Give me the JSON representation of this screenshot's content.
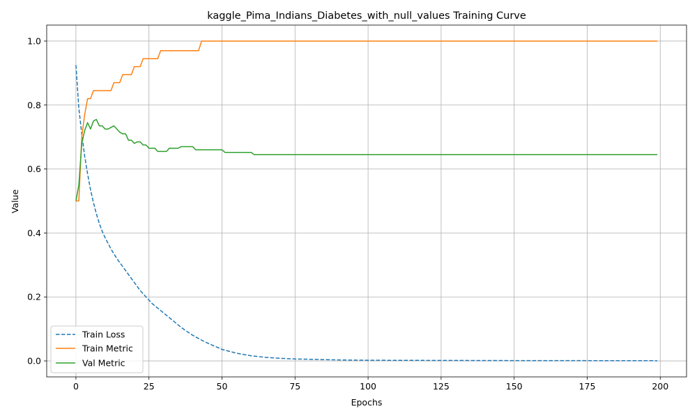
{
  "chart_data": {
    "type": "line",
    "title": "kaggle_Pima_Indians_Diabetes_with_null_values Training Curve",
    "xlabel": "Epochs",
    "ylabel": "Value",
    "xlim": [
      -10,
      209
    ],
    "ylim": [
      -0.05,
      1.05
    ],
    "x_ticks": [
      0,
      25,
      50,
      75,
      100,
      125,
      150,
      175,
      200
    ],
    "x_tick_labels": [
      "0",
      "25",
      "50",
      "75",
      "100",
      "125",
      "150",
      "175",
      "200"
    ],
    "y_ticks": [
      0.0,
      0.2,
      0.4,
      0.6,
      0.8,
      1.0
    ],
    "y_tick_labels": [
      "0.0",
      "0.2",
      "0.4",
      "0.6",
      "0.8",
      "1.0"
    ],
    "grid": true,
    "legend_position": "lower-left",
    "series": [
      {
        "name": "Train Loss",
        "color": "#1f77b4",
        "style": "dashed",
        "x": [
          0,
          1,
          2,
          3,
          4,
          5,
          6,
          7,
          8,
          9,
          10,
          12,
          14,
          16,
          18,
          20,
          22,
          24,
          26,
          28,
          30,
          32,
          34,
          36,
          38,
          40,
          42,
          44,
          46,
          48,
          50,
          55,
          60,
          65,
          70,
          75,
          80,
          90,
          100,
          125,
          150,
          175,
          199
        ],
        "y": [
          0.925,
          0.79,
          0.71,
          0.64,
          0.585,
          0.535,
          0.495,
          0.46,
          0.43,
          0.405,
          0.385,
          0.35,
          0.32,
          0.295,
          0.27,
          0.245,
          0.22,
          0.2,
          0.18,
          0.165,
          0.15,
          0.135,
          0.12,
          0.105,
          0.092,
          0.08,
          0.07,
          0.06,
          0.052,
          0.044,
          0.036,
          0.024,
          0.016,
          0.011,
          0.008,
          0.006,
          0.005,
          0.003,
          0.002,
          0.0015,
          0.001,
          0.0008,
          0.0005
        ]
      },
      {
        "name": "Train Metric",
        "color": "#ff7f0e",
        "style": "solid",
        "x": [
          0,
          1,
          2,
          3,
          4,
          5,
          6,
          7,
          8,
          9,
          10,
          11,
          12,
          13,
          14,
          15,
          16,
          17,
          18,
          19,
          20,
          21,
          22,
          23,
          24,
          25,
          26,
          27,
          28,
          29,
          30,
          31,
          32,
          33,
          34,
          35,
          36,
          37,
          38,
          39,
          40,
          41,
          42,
          43,
          44,
          199
        ],
        "y": [
          0.5,
          0.5,
          0.7,
          0.77,
          0.82,
          0.82,
          0.845,
          0.845,
          0.845,
          0.845,
          0.845,
          0.845,
          0.845,
          0.87,
          0.87,
          0.87,
          0.895,
          0.895,
          0.895,
          0.895,
          0.92,
          0.92,
          0.92,
          0.945,
          0.945,
          0.945,
          0.945,
          0.945,
          0.945,
          0.97,
          0.97,
          0.97,
          0.97,
          0.97,
          0.97,
          0.97,
          0.97,
          0.97,
          0.97,
          0.97,
          0.97,
          0.97,
          0.97,
          1.0,
          1.0,
          1.0
        ]
      },
      {
        "name": "Val Metric",
        "color": "#2ca02c",
        "style": "solid",
        "x": [
          0,
          1,
          2,
          3,
          4,
          5,
          6,
          7,
          8,
          9,
          10,
          11,
          12,
          13,
          14,
          15,
          16,
          17,
          18,
          19,
          20,
          21,
          22,
          23,
          24,
          25,
          26,
          27,
          28,
          29,
          30,
          31,
          32,
          33,
          34,
          35,
          36,
          37,
          38,
          39,
          40,
          41,
          42,
          43,
          44,
          45,
          46,
          47,
          48,
          49,
          50,
          51,
          52,
          53,
          54,
          55,
          56,
          57,
          58,
          59,
          60,
          61,
          62,
          199
        ],
        "y": [
          0.5,
          0.55,
          0.68,
          0.72,
          0.745,
          0.725,
          0.75,
          0.755,
          0.735,
          0.735,
          0.725,
          0.725,
          0.73,
          0.735,
          0.725,
          0.715,
          0.71,
          0.71,
          0.69,
          0.69,
          0.68,
          0.685,
          0.685,
          0.675,
          0.675,
          0.665,
          0.665,
          0.665,
          0.655,
          0.655,
          0.655,
          0.655,
          0.665,
          0.665,
          0.665,
          0.665,
          0.67,
          0.67,
          0.67,
          0.67,
          0.67,
          0.66,
          0.66,
          0.66,
          0.66,
          0.66,
          0.66,
          0.66,
          0.66,
          0.66,
          0.66,
          0.652,
          0.652,
          0.652,
          0.652,
          0.652,
          0.652,
          0.652,
          0.652,
          0.652,
          0.652,
          0.645,
          0.645,
          0.645
        ]
      }
    ]
  }
}
